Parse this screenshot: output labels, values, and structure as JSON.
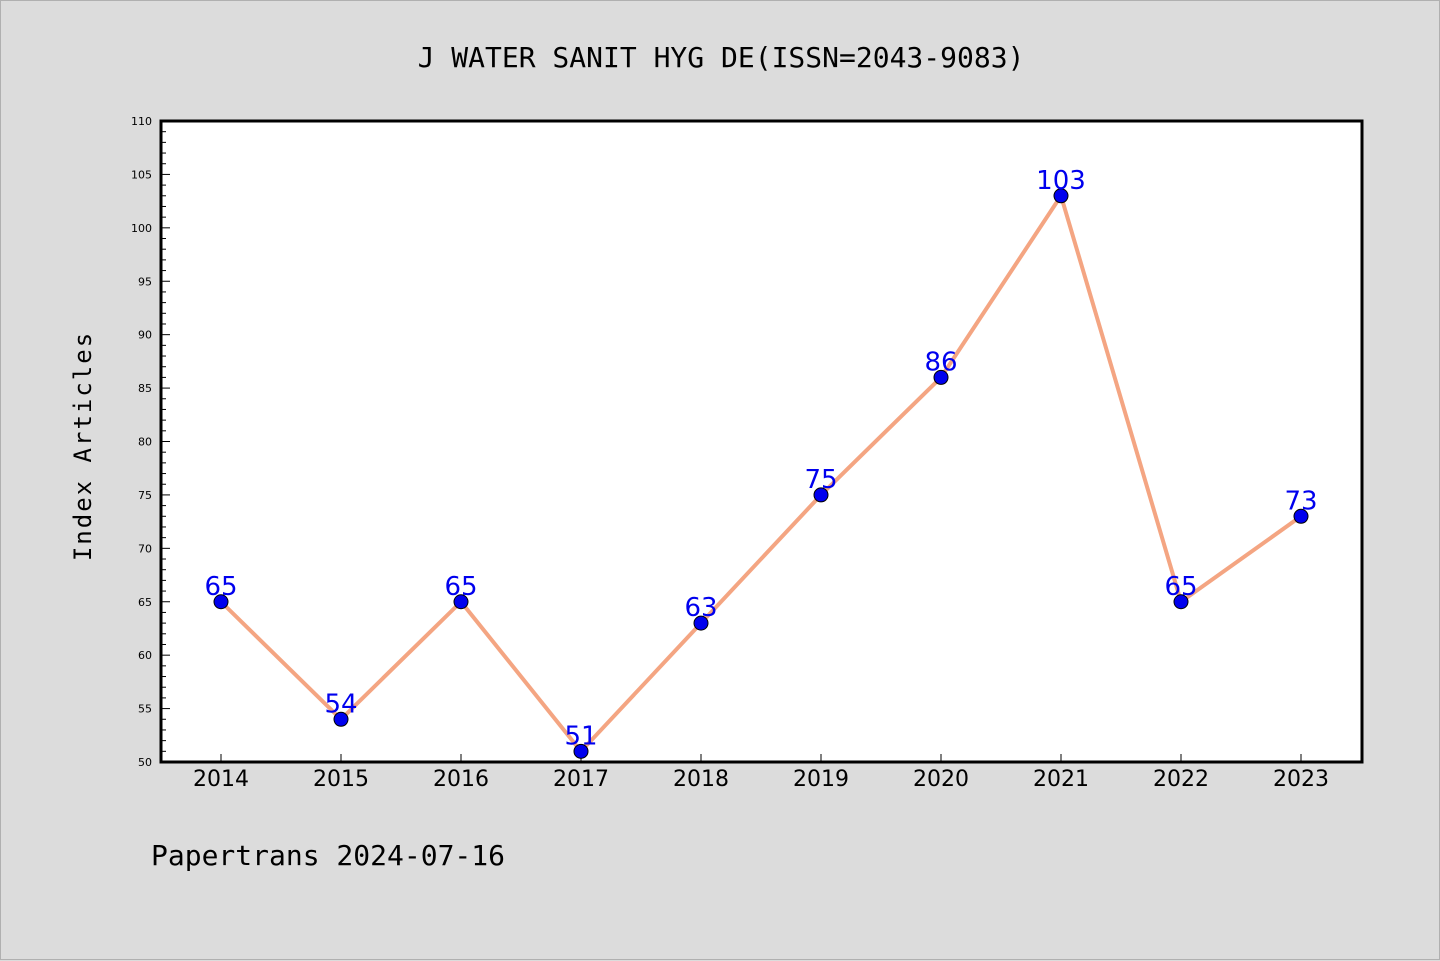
{
  "chart_data": {
    "type": "line",
    "title": "J WATER SANIT HYG DE(ISSN=2043-9083)",
    "xlabel": "",
    "ylabel": "Index Articles",
    "categories": [
      "2014",
      "2015",
      "2016",
      "2017",
      "2018",
      "2019",
      "2020",
      "2021",
      "2022",
      "2023"
    ],
    "series": [
      {
        "values": [
          65,
          54,
          65,
          51,
          63,
          75,
          86,
          103,
          65,
          73
        ]
      }
    ],
    "ylim": [
      50,
      110
    ],
    "yticks": [
      50,
      55,
      60,
      65,
      70,
      75,
      80,
      85,
      90,
      95,
      100,
      105,
      110
    ],
    "grid": false,
    "line_color": "#f4a582",
    "marker_color": "#0000ee",
    "label_color": "#0000ee"
  },
  "footer": {
    "text": "Papertrans 2024-07-16"
  }
}
